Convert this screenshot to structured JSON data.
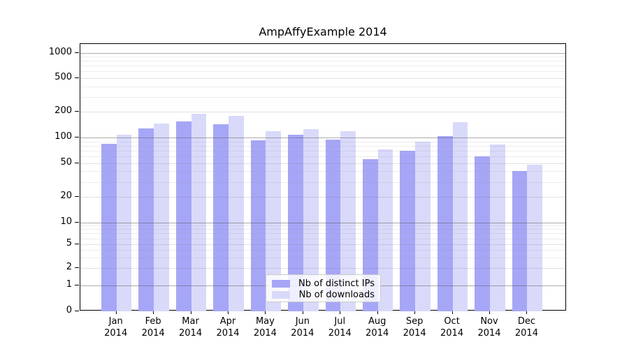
{
  "chart_data": {
    "type": "bar",
    "title": "AmpAffyExample 2014",
    "categories": [
      "Jan",
      "Feb",
      "Mar",
      "Apr",
      "May",
      "Jun",
      "Jul",
      "Aug",
      "Sep",
      "Oct",
      "Nov",
      "Dec"
    ],
    "year_label": "2014",
    "series": [
      {
        "name": "Nb of distinct IPs",
        "color": "#a6a6f7",
        "values": [
          85,
          127,
          155,
          144,
          92,
          108,
          95,
          56,
          70,
          103,
          60,
          40
        ]
      },
      {
        "name": "Nb of downloads",
        "color": "#d9d9fa",
        "values": [
          107,
          146,
          190,
          180,
          118,
          125,
          118,
          73,
          90,
          152,
          83,
          48
        ]
      }
    ],
    "y_ticks": [
      0,
      1,
      2,
      5,
      10,
      20,
      50,
      100,
      200,
      500,
      1000
    ],
    "y_scale": "log-like",
    "ylim": [
      0,
      1000
    ],
    "xlabel": "",
    "ylabel": "",
    "grid": true,
    "legend_position": "bottom-center"
  }
}
